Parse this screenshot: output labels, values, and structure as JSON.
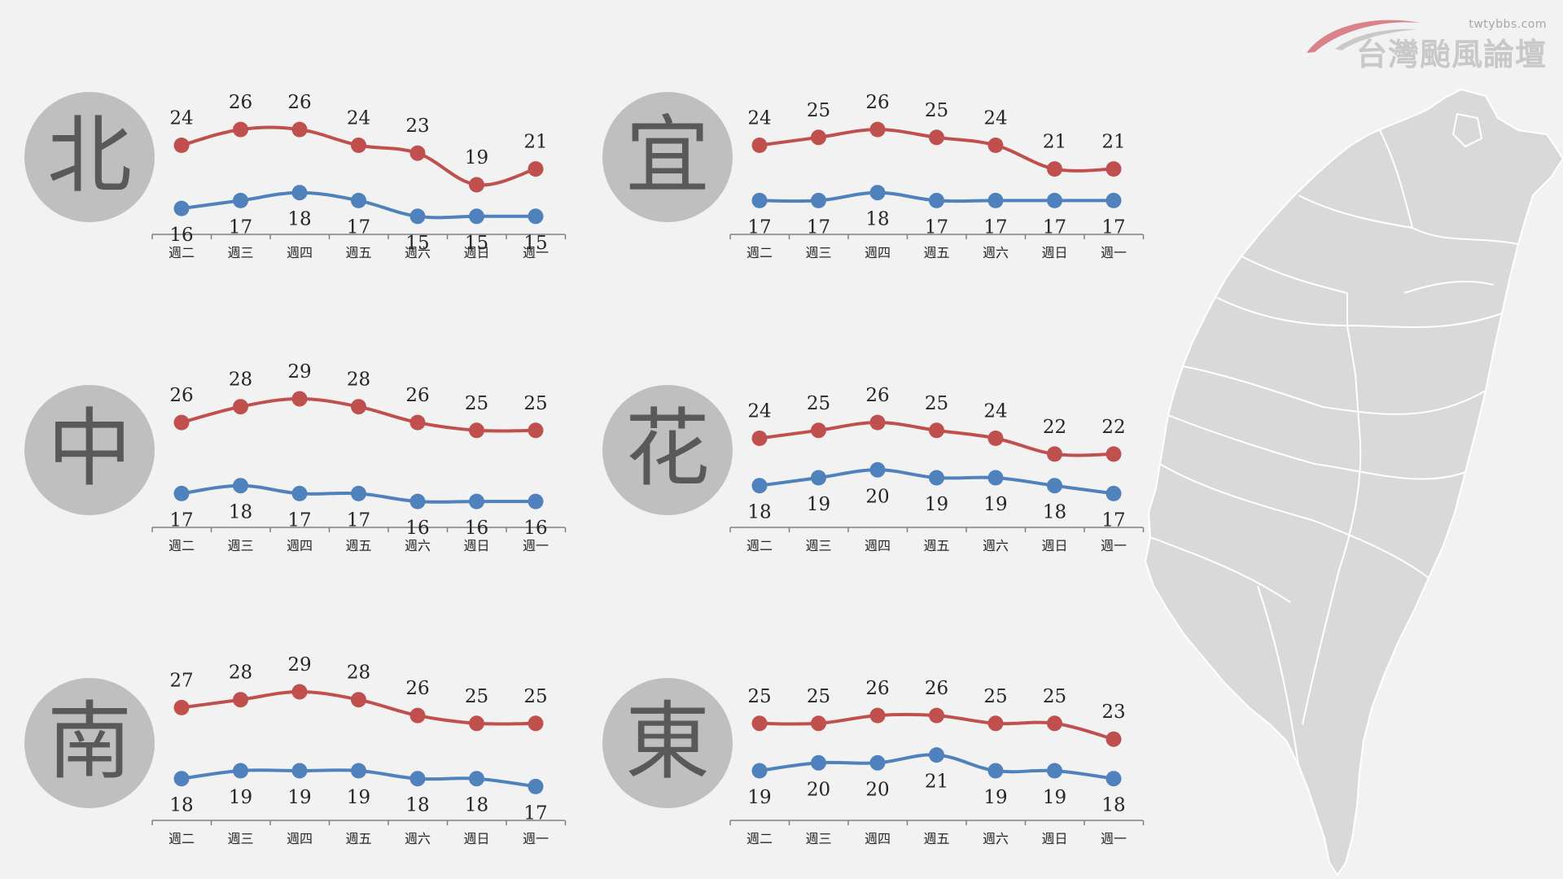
{
  "logo": {
    "url": "twtybbs.com",
    "name": "台灣颱風論壇"
  },
  "colors": {
    "high": "#c0504d",
    "low": "#4f81bd",
    "badge": "#bfbfbf",
    "map": "#d9d9d9"
  },
  "chart_data": [
    {
      "type": "line",
      "region": "北",
      "categories": [
        "週二",
        "週三",
        "週四",
        "週五",
        "週六",
        "週日",
        "週一"
      ],
      "series": [
        {
          "values": [
            24,
            26,
            26,
            24,
            23,
            19,
            21
          ]
        },
        {
          "values": [
            16,
            17,
            18,
            17,
            15,
            15,
            15
          ]
        }
      ]
    },
    {
      "type": "line",
      "region": "宜",
      "categories": [
        "週二",
        "週三",
        "週四",
        "週五",
        "週六",
        "週日",
        "週一"
      ],
      "series": [
        {
          "values": [
            24,
            25,
            26,
            25,
            24,
            21,
            21
          ]
        },
        {
          "values": [
            17,
            17,
            18,
            17,
            17,
            17,
            17
          ]
        }
      ]
    },
    {
      "type": "line",
      "region": "中",
      "categories": [
        "週二",
        "週三",
        "週四",
        "週五",
        "週六",
        "週日",
        "週一"
      ],
      "series": [
        {
          "values": [
            26,
            28,
            29,
            28,
            26,
            25,
            25
          ]
        },
        {
          "values": [
            17,
            18,
            17,
            17,
            16,
            16,
            16
          ]
        }
      ]
    },
    {
      "type": "line",
      "region": "花",
      "categories": [
        "週二",
        "週三",
        "週四",
        "週五",
        "週六",
        "週日",
        "週一"
      ],
      "series": [
        {
          "values": [
            24,
            25,
            26,
            25,
            24,
            22,
            22
          ]
        },
        {
          "values": [
            18,
            19,
            20,
            19,
            19,
            18,
            17
          ]
        }
      ]
    },
    {
      "type": "line",
      "region": "南",
      "categories": [
        "週二",
        "週三",
        "週四",
        "週五",
        "週六",
        "週日",
        "週一"
      ],
      "series": [
        {
          "values": [
            27,
            28,
            29,
            28,
            26,
            25,
            25
          ]
        },
        {
          "values": [
            18,
            19,
            19,
            19,
            18,
            18,
            17
          ]
        }
      ]
    },
    {
      "type": "line",
      "region": "東",
      "categories": [
        "週二",
        "週三",
        "週四",
        "週五",
        "週六",
        "週日",
        "週一"
      ],
      "series": [
        {
          "values": [
            25,
            25,
            26,
            26,
            25,
            25,
            23
          ]
        },
        {
          "values": [
            19,
            20,
            20,
            21,
            19,
            19,
            18
          ]
        }
      ]
    }
  ]
}
